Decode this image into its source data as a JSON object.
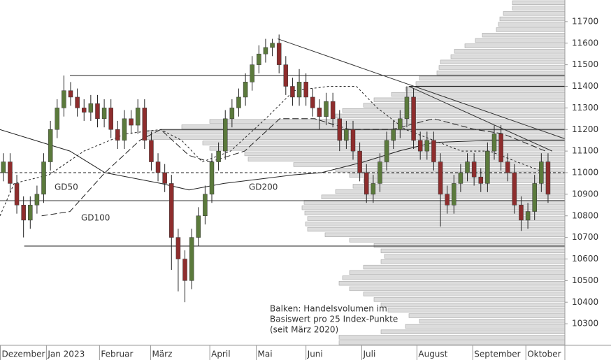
{
  "chart_data": {
    "type": "candlestick",
    "ylim": [
      10200,
      11800
    ],
    "yticks": [
      10300,
      10400,
      10500,
      10600,
      10700,
      10800,
      10900,
      11000,
      11100,
      11200,
      11300,
      11400,
      11500,
      11600,
      11700
    ],
    "xlim": [
      -0.5,
      83.5
    ],
    "xticks": [
      {
        "value": -0.5,
        "label": "Dezember"
      },
      {
        "value": 6.4,
        "label": "Jan 2023"
      },
      {
        "value": 14.3,
        "label": "Februar"
      },
      {
        "value": 21.9,
        "label": "März"
      },
      {
        "value": 30.7,
        "label": "April"
      },
      {
        "value": 37.6,
        "label": "Mai"
      },
      {
        "value": 45,
        "label": "Juni"
      },
      {
        "value": 53.3,
        "label": "Juli"
      },
      {
        "value": 61.5,
        "label": "August"
      },
      {
        "value": 69.8,
        "label": "September"
      },
      {
        "value": 77.7,
        "label": "Oktober"
      }
    ],
    "up_color": "#5b7a3c",
    "down_color": "#8e2d2d",
    "open": [
      11000,
      11050,
      10950,
      10850,
      10780,
      10850,
      10900,
      11050,
      11200,
      11300,
      11380,
      11350,
      11300,
      11280,
      11320,
      11250,
      11300,
      11200,
      11150,
      11250,
      11220,
      11300,
      11150,
      11050,
      11000,
      10950,
      10700,
      10600,
      10500,
      10700,
      10800,
      10900,
      11050,
      11100,
      11250,
      11300,
      11350,
      11420,
      11500,
      11550,
      11580,
      11600,
      11500,
      11400,
      11350,
      11420,
      11350,
      11300,
      11260,
      11330,
      11250,
      11150,
      11200,
      11100,
      11000,
      10900,
      10950,
      11050,
      11150,
      11200,
      11250,
      11350,
      11150,
      11100,
      11150,
      11050,
      10900,
      10850,
      10950,
      11000,
      11050,
      10980,
      10950,
      11100,
      11180,
      11050,
      11000,
      10850,
      10780,
      10820,
      10950,
      11050
    ],
    "high": [
      11090,
      11090,
      10990,
      10890,
      10890,
      10940,
      11090,
      11240,
      11340,
      11450,
      11420,
      11390,
      11340,
      11360,
      11360,
      11340,
      11340,
      11240,
      11290,
      11290,
      11340,
      11340,
      11190,
      11090,
      11040,
      10990,
      10740,
      10640,
      10740,
      10840,
      10940,
      11090,
      11140,
      11290,
      11340,
      11390,
      11460,
      11540,
      11590,
      11620,
      11620,
      11640,
      11540,
      11440,
      11480,
      11460,
      11390,
      11340,
      11370,
      11370,
      11290,
      11240,
      11240,
      11140,
      11040,
      10990,
      11090,
      11190,
      11240,
      11290,
      11400,
      11390,
      11190,
      11190,
      11190,
      11090,
      10940,
      10990,
      11040,
      11090,
      11090,
      11020,
      11140,
      11220,
      11220,
      11090,
      11040,
      10890,
      10860,
      10990,
      11090,
      11090
    ],
    "low": [
      10960,
      10910,
      10810,
      10700,
      10740,
      10810,
      10860,
      11010,
      11160,
      11260,
      11310,
      11260,
      11240,
      11240,
      11210,
      11210,
      11160,
      11110,
      11110,
      11180,
      11180,
      11110,
      11010,
      10960,
      10910,
      10550,
      10450,
      10400,
      10460,
      10660,
      10760,
      10860,
      11010,
      11060,
      11210,
      11260,
      11310,
      11380,
      11460,
      11510,
      11540,
      11460,
      11360,
      11310,
      11310,
      11310,
      11260,
      11200,
      11220,
      11210,
      11100,
      11110,
      11060,
      10960,
      10860,
      10860,
      10910,
      11010,
      11110,
      11160,
      11210,
      11110,
      11060,
      11060,
      11010,
      10750,
      10810,
      10810,
      10910,
      10960,
      10940,
      10910,
      10910,
      11060,
      11010,
      10960,
      10810,
      10730,
      10740,
      10780,
      10910,
      10860
    ],
    "close": [
      11050,
      10950,
      10850,
      10780,
      10850,
      10900,
      11050,
      11200,
      11300,
      11380,
      11350,
      11300,
      11280,
      11320,
      11250,
      11300,
      11200,
      11150,
      11250,
      11220,
      11300,
      11150,
      11050,
      11000,
      10950,
      10700,
      10600,
      10500,
      10700,
      10800,
      10900,
      11050,
      11100,
      11250,
      11300,
      11350,
      11420,
      11500,
      11550,
      11580,
      11600,
      11500,
      11400,
      11350,
      11420,
      11350,
      11300,
      11260,
      11330,
      11250,
      11150,
      11200,
      11100,
      11000,
      10900,
      10950,
      11050,
      11150,
      11200,
      11250,
      11350,
      11150,
      11100,
      11150,
      11050,
      10900,
      10850,
      10950,
      11000,
      11050,
      10980,
      10950,
      11100,
      11180,
      11050,
      11000,
      10850,
      10780,
      10820,
      10950,
      11050,
      10900
    ],
    "averages": [
      {
        "name": "GD50",
        "dash": "3,3",
        "x": [
          -0.5,
          1.6,
          6.8,
          12,
          18.2,
          23.4,
          26.5,
          29.6,
          33.8,
          39,
          43.2,
          48.4,
          52.5,
          55.6,
          59.8,
          64,
          68.1,
          72.3,
          76.4,
          80.6
        ],
        "values": [
          10800,
          10950,
          10990,
          11100,
          11180,
          11200,
          11150,
          11050,
          11100,
          11250,
          11380,
          11400,
          11400,
          11300,
          11200,
          11150,
          11100,
          11100,
          11050,
          11000
        ]
      },
      {
        "name": "GD100",
        "dash": "9,4",
        "x": [
          5.7,
          9.9,
          15.1,
          20.3,
          23.4,
          27.6,
          30.7,
          35.9,
          41.1,
          46.3,
          51.5,
          57.7,
          64,
          70.2,
          74.3,
          80.6
        ],
        "values": [
          10800,
          10820,
          11000,
          11150,
          11200,
          11080,
          11050,
          11100,
          11250,
          11250,
          11200,
          11200,
          11250,
          11200,
          11180,
          11100
        ]
      },
      {
        "name": "GD200",
        "dash": "none",
        "x": [
          -0.5,
          9.9,
          15.1,
          23.4,
          27.6,
          32.8,
          43.2,
          47.3,
          53.6,
          58.8,
          64,
          72.3,
          83.5
        ],
        "values": [
          11200,
          11100,
          11000,
          10950,
          10920,
          10950,
          10990,
          11000,
          11050,
          11100,
          11140,
          11150,
          11150
        ]
      }
    ],
    "levels": [
      {
        "value": 11450,
        "from": 9.9,
        "dash": "none"
      },
      {
        "value": 11400,
        "from": 60.3,
        "dash": "none"
      },
      {
        "value": 11200,
        "from": 23.4,
        "dash": "none"
      },
      {
        "value": 11000,
        "from": -0.5,
        "dash": "4,3"
      },
      {
        "value": 10870,
        "from": -0.5,
        "dash": "none"
      },
      {
        "value": 10660,
        "from": 3.1,
        "dash": "none"
      }
    ],
    "trendlines": [
      {
        "x": [
          40.8,
          83.5
        ],
        "values": [
          11620,
          11157
        ]
      },
      {
        "x": [
          60.3,
          81.6
        ],
        "values": [
          11400,
          11100
        ]
      }
    ],
    "profile": {
      "bins": [
        10200,
        10225,
        10250,
        10275,
        10300,
        10325,
        10350,
        10375,
        10400,
        10425,
        10450,
        10475,
        10500,
        10525,
        10550,
        10575,
        10600,
        10625,
        10650,
        10675,
        10700,
        10725,
        10750,
        10775,
        10800,
        10825,
        10850,
        10875,
        10900,
        10925,
        10950,
        10975,
        11000,
        11025,
        11050,
        11075,
        11100,
        11125,
        11150,
        11175,
        11200,
        11225,
        11250,
        11275,
        11300,
        11325,
        11350,
        11375,
        11400,
        11425,
        11450,
        11475,
        11500,
        11525,
        11550,
        11575,
        11600,
        11625,
        11650,
        11675,
        11700,
        11725,
        11750,
        11775,
        11800
      ],
      "values": [
        323,
        323,
        263,
        228,
        208,
        223,
        253,
        263,
        273,
        288,
        308,
        323,
        318,
        308,
        288,
        263,
        258,
        263,
        273,
        308,
        343,
        368,
        371,
        368,
        372,
        376,
        373,
        348,
        328,
        303,
        288,
        308,
        328,
        388,
        453,
        458,
        508,
        518,
        603,
        598,
        548,
        508,
        328,
        318,
        288,
        273,
        248,
        228,
        213,
        208,
        183,
        180,
        178,
        163,
        158,
        143,
        128,
        118,
        98,
        95,
        93,
        88,
        75,
        75
      ],
      "xlim": [
        0,
        808
      ]
    },
    "annotation": [
      "Balken: Handelsvolumen im",
      "Basiswert pro 25 Index-Punkte",
      "(seit März 2020)"
    ]
  }
}
